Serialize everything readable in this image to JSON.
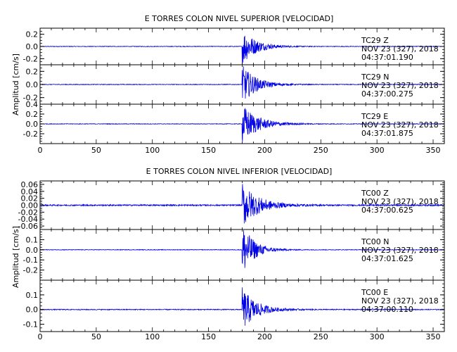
{
  "colors": {
    "trace": "#0000e6",
    "axes": "#000000",
    "background": "#ffffff"
  },
  "chart_data": [
    {
      "type": "line",
      "title": "E TORRES COLON NIVEL SUPERIOR [VELOCIDAD]",
      "ylabel": "Amplitud [cm/s]",
      "xlim": [
        0,
        360
      ],
      "x_ticks": [
        "0",
        "50",
        "100",
        "150",
        "200",
        "250",
        "300",
        "350"
      ],
      "event_onset_s": 180,
      "panels": [
        {
          "station": "TC29",
          "component": "Z",
          "date": "NOV 23 (327), 2018",
          "time": "04:37:01.190",
          "ylim": [
            -0.3,
            0.3
          ],
          "y_ticks": [
            "0.2",
            "0.0",
            "-0.2"
          ],
          "y_tick_values": [
            0.2,
            0.0,
            -0.2
          ],
          "peak_amplitude": 0.3,
          "noise_amplitude": 0.005,
          "decay_s": 12
        },
        {
          "station": "TC29",
          "component": "N",
          "date": "NOV 23 (327), 2018",
          "time": "04:37:00.275",
          "ylim": [
            -0.3,
            0.3
          ],
          "y_ticks": [
            "0.2",
            "0.0",
            "-0.2"
          ],
          "y_tick_values": [
            0.2,
            0.0,
            -0.2
          ],
          "peak_amplitude": 0.3,
          "noise_amplitude": 0.005,
          "decay_s": 12
        },
        {
          "station": "TC29",
          "component": "E",
          "date": "NOV 23 (327), 2018",
          "time": "04:37:01.875",
          "ylim": [
            -0.4,
            0.4
          ],
          "y_ticks": [
            "0.4",
            "0.2",
            "0.0",
            "-0.2"
          ],
          "y_tick_values": [
            0.4,
            0.2,
            0.0,
            -0.2
          ],
          "peak_amplitude": 0.4,
          "noise_amplitude": 0.006,
          "decay_s": 14
        }
      ]
    },
    {
      "type": "line",
      "title": "E TORRES COLON NIVEL INFERIOR [VELOCIDAD]",
      "ylabel": "Amplitud [cm/s]",
      "xlim": [
        0,
        360
      ],
      "x_ticks": [
        "0",
        "50",
        "100",
        "150",
        "200",
        "250",
        "300",
        "350"
      ],
      "event_onset_s": 180,
      "panels": [
        {
          "station": "TC00",
          "component": "Z",
          "date": "NOV 23 (327), 2018",
          "time": "04:37:00.625",
          "ylim": [
            -0.07,
            0.07
          ],
          "y_ticks": [
            "0.06",
            "0.04",
            "0.02",
            "0.00",
            "-0.02",
            "-0.04",
            "-0.06"
          ],
          "y_tick_values": [
            0.06,
            0.04,
            0.02,
            0.0,
            -0.02,
            -0.04,
            -0.06
          ],
          "peak_amplitude": 0.065,
          "noise_amplitude": 0.002,
          "decay_s": 14
        },
        {
          "station": "TC00",
          "component": "N",
          "date": "NOV 23 (327), 2018",
          "time": "04:37:01.625",
          "ylim": [
            -0.3,
            0.2
          ],
          "y_ticks": [
            "0.1",
            "0.0",
            "-0.1",
            "-0.2"
          ],
          "y_tick_values": [
            0.1,
            0.0,
            -0.1,
            -0.2
          ],
          "peak_amplitude": 0.27,
          "noise_amplitude": 0.003,
          "decay_s": 10
        },
        {
          "station": "TC00",
          "component": "E",
          "date": "NOV 23 (327), 2018",
          "time": "04:37:00.110",
          "ylim": [
            -0.15,
            0.2
          ],
          "y_ticks": [
            "0.1",
            "0.0",
            "-0.1"
          ],
          "y_tick_values": [
            0.1,
            0.0,
            -0.1
          ],
          "peak_amplitude": 0.15,
          "noise_amplitude": 0.003,
          "decay_s": 12
        }
      ]
    }
  ]
}
